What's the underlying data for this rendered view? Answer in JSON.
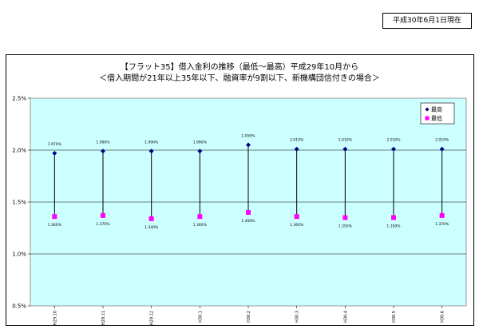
{
  "header": {
    "as_of_date": "平成30年6月1日現在"
  },
  "chart_data": {
    "type": "line",
    "title_line1": "【フラット35】借入金利の推移（最低～最高）平成29年10月から",
    "title_line2": "＜借入期間が21年以上35年以下、融資率が9割以下、新機構団信付きの場合＞",
    "categories": [
      "H29.10",
      "H29.11",
      "H29.12",
      "H30.1",
      "H30.2",
      "H30.3",
      "H30.4",
      "H30.5",
      "H30.6"
    ],
    "series": [
      {
        "name": "最高",
        "color": "#000080",
        "marker": "diamond",
        "values": [
          1.97,
          1.99,
          1.99,
          1.99,
          2.05,
          2.01,
          2.01,
          2.01,
          2.01
        ],
        "labels": [
          "1.970%",
          "1.990%",
          "1.990%",
          "1.990%",
          "2.050%",
          "2.010%",
          "2.010%",
          "2.010%",
          "2.010%"
        ]
      },
      {
        "name": "最低",
        "color": "#ff00ff",
        "marker": "square",
        "values": [
          1.36,
          1.37,
          1.34,
          1.36,
          1.4,
          1.36,
          1.35,
          1.35,
          1.37
        ],
        "labels": [
          "1.360%",
          "1.370%",
          "1.340%",
          "1.360%",
          "1.400%",
          "1.360%",
          "1.350%",
          "1.350%",
          "1.370%"
        ]
      }
    ],
    "y_ticks": [
      "2.5%",
      "2.0%",
      "1.5%",
      "1.0%",
      "0.5%"
    ],
    "ylim": [
      0.5,
      2.5
    ],
    "grid": true,
    "legend": "top-right",
    "plot_background": "#ccffff"
  }
}
